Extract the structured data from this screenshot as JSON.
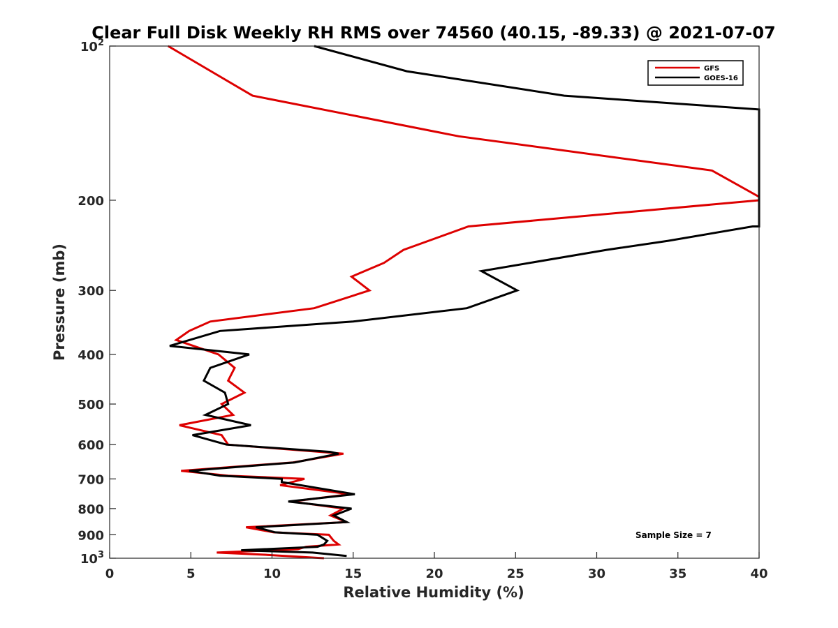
{
  "chart_data": {
    "type": "line",
    "title": "Clear Full Disk Weekly RH RMS over 74560 (40.15, -89.33) @ 2021-07-07",
    "xlabel": "Relative Humidity (%)",
    "ylabel": "Pressure (mb)",
    "xlim": [
      0,
      40
    ],
    "ylim": [
      100,
      1000
    ],
    "y_scale": "log",
    "y_reversed": true,
    "grid": false,
    "legend_position": "top-right",
    "x_ticks": [
      "0",
      "5",
      "10",
      "15",
      "20",
      "25",
      "30",
      "35",
      "40"
    ],
    "y_ticks": [
      {
        "value": 100,
        "base": "10",
        "exp": "2"
      },
      {
        "value": 200,
        "label": "200"
      },
      {
        "value": 300,
        "label": "300"
      },
      {
        "value": 400,
        "label": "400"
      },
      {
        "value": 500,
        "label": "500"
      },
      {
        "value": 600,
        "label": "600"
      },
      {
        "value": 700,
        "label": "700"
      },
      {
        "value": 800,
        "label": "800"
      },
      {
        "value": 900,
        "label": "900"
      },
      {
        "value": 1000,
        "base": "10",
        "exp": "3"
      }
    ],
    "series": [
      {
        "name": "GFS",
        "color": "#dd0000",
        "points": [
          [
            3.6,
            100
          ],
          [
            8.8,
            125
          ],
          [
            21.5,
            150
          ],
          [
            37.1,
            175
          ],
          [
            40.0,
            197
          ],
          [
            40.0,
            200
          ],
          [
            22.1,
            225
          ],
          [
            18.1,
            250
          ],
          [
            16.9,
            265
          ],
          [
            14.9,
            282
          ],
          [
            16.0,
            300
          ],
          [
            12.6,
            325
          ],
          [
            6.2,
            345
          ],
          [
            4.9,
            360
          ],
          [
            4.1,
            375
          ],
          [
            6.7,
            400
          ],
          [
            7.7,
            425
          ],
          [
            7.3,
            450
          ],
          [
            8.3,
            475
          ],
          [
            6.9,
            500
          ],
          [
            7.6,
            525
          ],
          [
            4.3,
            550
          ],
          [
            6.9,
            575
          ],
          [
            7.3,
            600
          ],
          [
            13.0,
            620
          ],
          [
            14.4,
            625
          ],
          [
            11.3,
            650
          ],
          [
            4.4,
            675
          ],
          [
            7.3,
            690
          ],
          [
            12.0,
            700
          ],
          [
            10.5,
            720
          ],
          [
            14.8,
            750
          ],
          [
            11.2,
            775
          ],
          [
            14.4,
            800
          ],
          [
            13.6,
            825
          ],
          [
            14.6,
            850
          ],
          [
            8.4,
            870
          ],
          [
            10.1,
            890
          ],
          [
            13.5,
            900
          ],
          [
            13.8,
            925
          ],
          [
            14.1,
            940
          ],
          [
            12.1,
            950
          ],
          [
            11.6,
            960
          ],
          [
            6.6,
            975
          ],
          [
            9.7,
            985
          ],
          [
            13.2,
            1000
          ]
        ]
      },
      {
        "name": "GOES-16",
        "color": "#000000",
        "points": [
          [
            12.6,
            100
          ],
          [
            18.3,
            112
          ],
          [
            28.0,
            125
          ],
          [
            40.0,
            133
          ],
          [
            40.0,
            225
          ],
          [
            39.6,
            225
          ],
          [
            34.4,
            240
          ],
          [
            30.6,
            250
          ],
          [
            22.9,
            275
          ],
          [
            25.1,
            300
          ],
          [
            22.0,
            325
          ],
          [
            15.0,
            345
          ],
          [
            6.8,
            360
          ],
          [
            3.7,
            385
          ],
          [
            8.6,
            400
          ],
          [
            6.2,
            425
          ],
          [
            5.8,
            450
          ],
          [
            7.1,
            475
          ],
          [
            7.3,
            500
          ],
          [
            5.9,
            525
          ],
          [
            8.7,
            550
          ],
          [
            5.1,
            575
          ],
          [
            7.2,
            600
          ],
          [
            13.6,
            620
          ],
          [
            14.1,
            625
          ],
          [
            11.4,
            650
          ],
          [
            4.9,
            675
          ],
          [
            6.8,
            690
          ],
          [
            10.6,
            700
          ],
          [
            10.6,
            710
          ],
          [
            15.1,
            750
          ],
          [
            11.0,
            775
          ],
          [
            14.9,
            800
          ],
          [
            13.8,
            825
          ],
          [
            14.6,
            850
          ],
          [
            9.0,
            870
          ],
          [
            10.2,
            890
          ],
          [
            12.8,
            900
          ],
          [
            13.4,
            925
          ],
          [
            13.2,
            940
          ],
          [
            12.8,
            950
          ],
          [
            8.1,
            965
          ],
          [
            12.5,
            975
          ],
          [
            14.6,
            990
          ]
        ]
      }
    ],
    "annotations": [
      "Sample Size = 7"
    ]
  }
}
